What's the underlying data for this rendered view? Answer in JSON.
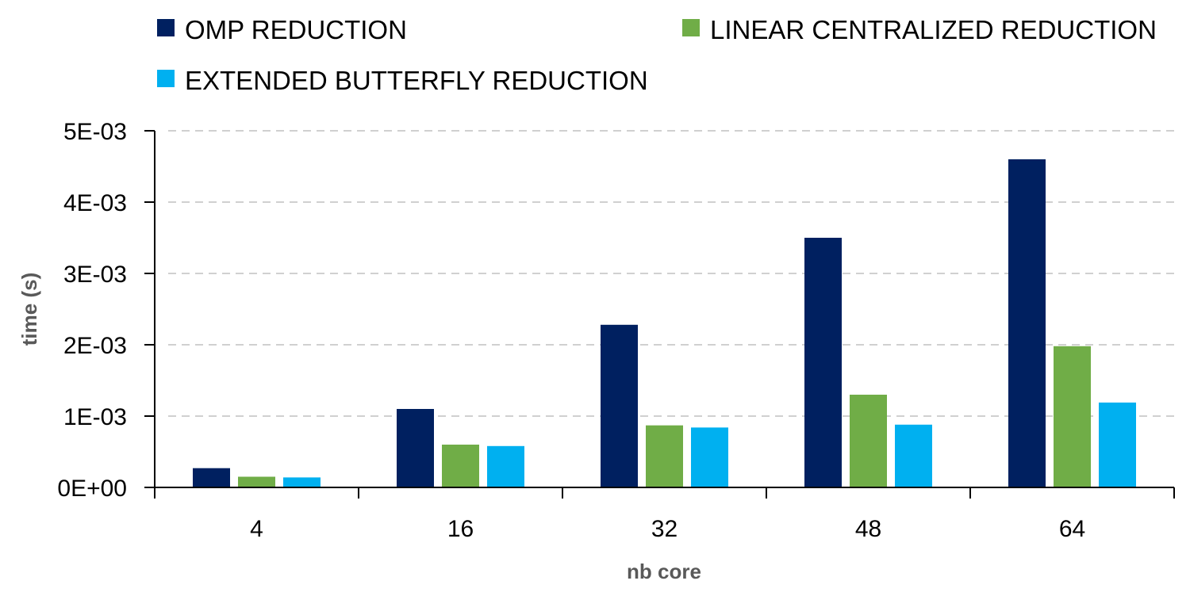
{
  "chart_data": {
    "type": "bar",
    "categories": [
      "4",
      "16",
      "32",
      "48",
      "64"
    ],
    "series": [
      {
        "name": "OMP REDUCTION",
        "color": "#002060",
        "values": [
          0.00027,
          0.0011,
          0.00228,
          0.0035,
          0.0046
        ]
      },
      {
        "name": "LINEAR CENTRALIZED REDUCTION",
        "color": "#70AD47",
        "values": [
          0.00015,
          0.0006,
          0.00087,
          0.0013,
          0.00198
        ]
      },
      {
        "name": "EXTENDED BUTTERFLY REDUCTION",
        "color": "#00B0F0",
        "values": [
          0.00014,
          0.00058,
          0.00084,
          0.00088,
          0.00119
        ]
      }
    ],
    "xlabel": "nb core",
    "ylabel": "time (s)",
    "ylim": [
      0,
      0.005
    ],
    "yticks": [
      0,
      0.001,
      0.002,
      0.003,
      0.004,
      0.005
    ],
    "ytick_labels": [
      "0E+00",
      "1E-03",
      "2E-03",
      "3E-03",
      "4E-03",
      "5E-03"
    ],
    "grid": true,
    "legend_position": "top"
  }
}
